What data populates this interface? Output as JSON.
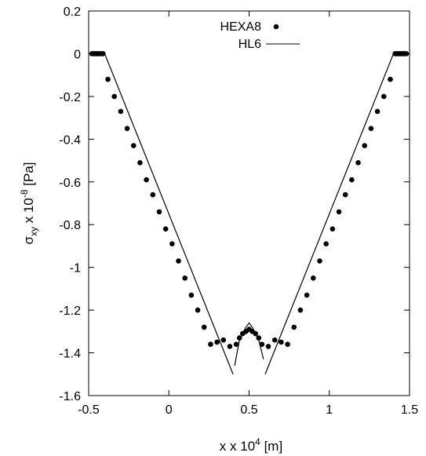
{
  "chart_data": {
    "type": "line",
    "xlabel": {
      "base": "x  x 10",
      "exponent": "4",
      "unit": " [m]"
    },
    "ylabel": {
      "sym": "σ",
      "sub": "xy",
      "mid": " x 10",
      "exponent": "-8",
      "unit": " [Pa]"
    },
    "xlim": [
      -0.5,
      1.5
    ],
    "ylim": [
      -1.6,
      0.2
    ],
    "x_ticks": [
      -0.5,
      0,
      0.5,
      1,
      1.5
    ],
    "x_tick_labels": [
      "-0.5",
      "0",
      "0.5",
      "1",
      "1.5"
    ],
    "y_ticks": [
      0.2,
      0,
      -0.2,
      -0.4,
      -0.6,
      -0.8,
      -1,
      -1.2,
      -1.4,
      -1.6
    ],
    "y_tick_labels": [
      "0.2",
      "0",
      "-0.2",
      "-0.4",
      "-0.6",
      "-0.8",
      "-1",
      "-1.2",
      "-1.4",
      "-1.6"
    ],
    "grid": false,
    "legend_position": "top-center",
    "series": [
      {
        "name": "HEXA8",
        "style": "points",
        "x": [
          -0.48,
          -0.47,
          -0.46,
          -0.45,
          -0.44,
          -0.43,
          -0.42,
          -0.41,
          -0.38,
          -0.34,
          -0.3,
          -0.26,
          -0.22,
          -0.18,
          -0.14,
          -0.1,
          -0.06,
          -0.02,
          0.02,
          0.06,
          0.1,
          0.14,
          0.18,
          0.22,
          0.26,
          0.3,
          0.34,
          0.38,
          0.42,
          0.44,
          0.46,
          0.48,
          0.5,
          0.52,
          0.54,
          0.56,
          0.58,
          0.62,
          0.66,
          0.7,
          0.74,
          0.78,
          0.82,
          0.86,
          0.9,
          0.94,
          0.98,
          1.02,
          1.06,
          1.1,
          1.14,
          1.18,
          1.22,
          1.26,
          1.3,
          1.34,
          1.38,
          1.41,
          1.42,
          1.43,
          1.44,
          1.45,
          1.46,
          1.47,
          1.48
        ],
        "y": [
          0,
          0,
          0,
          0,
          0,
          0,
          0,
          0,
          -0.12,
          -0.2,
          -0.27,
          -0.35,
          -0.43,
          -0.51,
          -0.59,
          -0.66,
          -0.74,
          -0.82,
          -0.89,
          -0.97,
          -1.05,
          -1.13,
          -1.2,
          -1.28,
          -1.36,
          -1.35,
          -1.34,
          -1.37,
          -1.36,
          -1.33,
          -1.31,
          -1.3,
          -1.29,
          -1.3,
          -1.31,
          -1.33,
          -1.36,
          -1.37,
          -1.34,
          -1.35,
          -1.36,
          -1.28,
          -1.2,
          -1.13,
          -1.05,
          -0.97,
          -0.89,
          -0.82,
          -0.74,
          -0.66,
          -0.59,
          -0.51,
          -0.43,
          -0.35,
          -0.27,
          -0.2,
          -0.12,
          0,
          0,
          0,
          0,
          0,
          0,
          0,
          0
        ]
      },
      {
        "name": "HL6",
        "style": "line",
        "segments": [
          {
            "x": [
              -0.5,
              -0.4,
              0.4
            ],
            "y": [
              0,
              0,
              -1.5
            ]
          },
          {
            "x": [
              0.41,
              0.44,
              0.48,
              0.5,
              0.52,
              0.56,
              0.59
            ],
            "y": [
              -1.46,
              -1.34,
              -1.28,
              -1.26,
              -1.28,
              -1.34,
              -1.43
            ]
          },
          {
            "x": [
              0.6,
              1.4,
              1.5
            ],
            "y": [
              -1.5,
              0,
              0
            ]
          }
        ]
      }
    ]
  }
}
